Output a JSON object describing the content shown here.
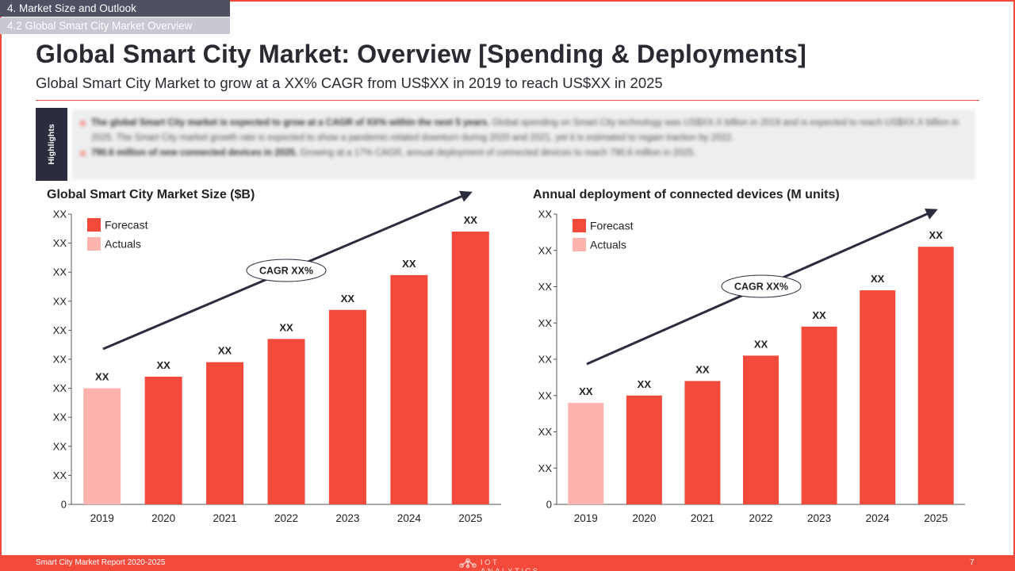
{
  "breadcrumb": {
    "section": "4. Market Size and Outlook",
    "subsection": "4.2 Global Smart City Market Overview"
  },
  "page": {
    "title": "Global Smart City Market: Overview [Spending & Deployments]",
    "subtitle": "Global Smart City Market to grow at a XX% CAGR from US$XX in 2019 to reach US$XX in 2025"
  },
  "highlights": {
    "label": "Highlights",
    "items": [
      {
        "bold": "The global Smart City market is expected to grow at a CAGR of XX% within the next 5 years.",
        "text": " Global spending on Smart City technology was US$XX.X billion in 2019 and is expected to reach US$XX.X billion in 2025. The Smart City market growth rate is expected to show a pandemic-related downturn during 2020 and 2021, yet it is estimated to regain traction by 2022."
      },
      {
        "bold": "790.6 million of new connected devices in 2025.",
        "text": " Growing at a 17% CAGR, annual deployment of connected devices to reach 790.6 million in 2025."
      }
    ]
  },
  "colors": {
    "accent": "#f44a3c",
    "forecast": "#f44a3c",
    "actuals": "#ffb3ae",
    "dark": "#2b2d3e"
  },
  "chart_data": [
    {
      "type": "bar",
      "title": "Global Smart City Market Size ($B)",
      "categories": [
        "2019",
        "2020",
        "2021",
        "2022",
        "2023",
        "2024",
        "2025"
      ],
      "values": [
        0.4,
        0.44,
        0.49,
        0.57,
        0.67,
        0.79,
        0.94
      ],
      "value_labels": [
        "XX",
        "XX",
        "XX",
        "XX",
        "XX",
        "XX",
        "XX"
      ],
      "bar_kind": [
        "Actuals",
        "Forecast",
        "Forecast",
        "Forecast",
        "Forecast",
        "Forecast",
        "Forecast"
      ],
      "ylim": [
        0,
        1
      ],
      "yticks": [
        "0",
        "XX",
        "XX",
        "XX",
        "XX",
        "XX",
        "XX",
        "XX",
        "XX",
        "XX",
        "XX"
      ],
      "legend": [
        {
          "name": "Forecast",
          "color": "#f44a3c"
        },
        {
          "name": "Actuals",
          "color": "#ffb3ae"
        }
      ],
      "legend_position": "top-left",
      "annotation": "CAGR XX%",
      "grid": false
    },
    {
      "type": "bar",
      "title": "Annual deployment of connected devices (M units)",
      "categories": [
        "2019",
        "2020",
        "2021",
        "2022",
        "2023",
        "2024",
        "2025"
      ],
      "values": [
        0.28,
        0.3,
        0.34,
        0.41,
        0.49,
        0.59,
        0.71
      ],
      "value_labels": [
        "XX",
        "XX",
        "XX",
        "XX",
        "XX",
        "XX",
        "XX"
      ],
      "bar_kind": [
        "Actuals",
        "Forecast",
        "Forecast",
        "Forecast",
        "Forecast",
        "Forecast",
        "Forecast"
      ],
      "ylim": [
        0,
        0.8
      ],
      "yticks": [
        "0",
        "XX",
        "XX",
        "XX",
        "XX",
        "XX",
        "XX",
        "XX",
        "XX"
      ],
      "legend": [
        {
          "name": "Forecast",
          "color": "#f44a3c"
        },
        {
          "name": "Actuals",
          "color": "#ffb3ae"
        }
      ],
      "legend_position": "top-left",
      "annotation": "CAGR XX%",
      "grid": false
    }
  ],
  "footer": {
    "report": "Smart City Market Report 2020-2025",
    "logo_text": "IOT ANALYTICS",
    "page_number": "7"
  }
}
